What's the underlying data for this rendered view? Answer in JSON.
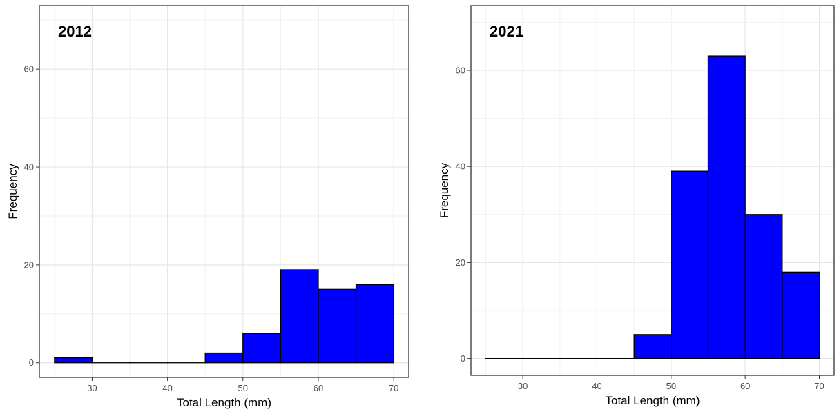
{
  "chart_data": [
    {
      "type": "bar",
      "subtype": "histogram",
      "title": "2012",
      "xlabel": "Total Length (mm)",
      "ylabel": "Frequency",
      "bin_edges": [
        25,
        30,
        35,
        40,
        45,
        50,
        55,
        60,
        65,
        70
      ],
      "values": [
        1,
        0,
        0,
        0,
        2,
        6,
        19,
        15,
        16
      ],
      "xlim": [
        23,
        72
      ],
      "ylim": [
        -3,
        73
      ],
      "xticks": [
        30,
        40,
        50,
        60,
        70
      ],
      "yticks": [
        0,
        20,
        40,
        60
      ],
      "bar_color": "#0000ff",
      "edge_color": "#000000",
      "grid": true
    },
    {
      "type": "bar",
      "subtype": "histogram",
      "title": "2021",
      "xlabel": "Total Length (mm)",
      "ylabel": "Frequency",
      "bin_edges": [
        25,
        30,
        35,
        40,
        45,
        50,
        55,
        60,
        65,
        70
      ],
      "values": [
        0,
        0,
        0,
        0,
        5,
        39,
        63,
        30,
        18
      ],
      "xlim": [
        23,
        72
      ],
      "ylim": [
        -3.5,
        73.5
      ],
      "xticks": [
        30,
        40,
        50,
        60,
        70
      ],
      "yticks": [
        0,
        20,
        40,
        60
      ],
      "bar_color": "#0000ff",
      "edge_color": "#000000",
      "grid": true
    }
  ]
}
